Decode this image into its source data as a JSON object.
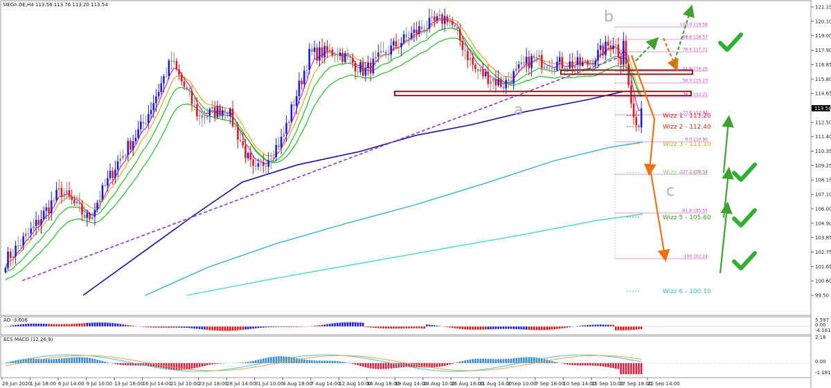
{
  "header": {
    "symbol_line": "SIEGn.DE,H4  113.56 113.76 113.20 113.54"
  },
  "current_price": "113.54",
  "colors": {
    "bull": "#1a1adf",
    "bear": "#e01818",
    "neutral": "#8a8a8a",
    "ema_fast": "#e020d0",
    "ema_mid": "#20c020",
    "ema_orange": "#f0a020",
    "ema_slow": "#1010a0",
    "ema_cyan": "#30b0e0",
    "ema_teal": "#40d8c8",
    "trend": "#9a30d0",
    "arrow_orange": "#f07010",
    "arrow_green": "#40a030",
    "zone": "#8b1a1a",
    "fib": "#e070e0"
  },
  "chart_data": {
    "type": "candlestick",
    "instrument": "SIEGn.DE",
    "timeframe": "H4",
    "y_ticks": [
      "121.15",
      "120.10",
      "119.00",
      "117.90",
      "116.85",
      "115.80",
      "114.65",
      "113.54",
      "112.50",
      "111.40",
      "110.35",
      "109.25",
      "108.15",
      "107.10",
      "106.00",
      "104.90",
      "103.85",
      "102.75",
      "101.65",
      "100.60",
      "99.50"
    ],
    "ylim": [
      99.5,
      121.15
    ],
    "x_ticks": [
      "29 Jun 2020",
      "1 Jul 18:00",
      "6 Jul 14:00",
      "9 Jul 10:00",
      "13 Jul 18:00",
      "16 Jul 14:00",
      "21 Jul 10:00",
      "23 Jul 18:00",
      "28 Jul 14:00",
      "31 Jul 10:00",
      "4 Aug 18:00",
      "7 Aug 14:00",
      "12 Aug 10:00",
      "14 Aug 18:00",
      "19 Aug 14:00",
      "24 Aug 10:00",
      "26 Aug 18:00",
      "31 Aug 14:00",
      "3 Sep 10:00",
      "7 Sep 18:00",
      "10 Sep 14:00",
      "15 Sep 10:00",
      "17 Sep 18:00",
      "22 Sep 14:00"
    ],
    "candles_close_by_tick": [
      102.1,
      104.5,
      107.4,
      105.2,
      109.3,
      112.4,
      117.1,
      112.9,
      113.6,
      108.6,
      111.2,
      117.6,
      117.8,
      116.3,
      118.1,
      119.5,
      120.4,
      116.4,
      115.3,
      117.2,
      116.9,
      116.8,
      118.6,
      113.54
    ],
    "fib_levels": [
      {
        "label": "100.0  119.56"
      },
      {
        "label": "88.6  118.57"
      },
      {
        "label": "78.6  117.71"
      },
      {
        "label": "61.8  116.25"
      },
      {
        "label": "50.0  115.23"
      },
      {
        "label": "38.2  114.21"
      },
      {
        "label": "23.6  112.94"
      },
      {
        "label": "0.0  110.90"
      },
      {
        "label": "-27.2  108.54"
      },
      {
        "label": "-61.8  105.55"
      },
      {
        "label": "-100  102.24"
      }
    ],
    "wizz_levels": [
      {
        "label": "Wizz 1 - 113.20",
        "color": "#e02020"
      },
      {
        "label": "Wizz 2 - 112.40",
        "color": "#d03010"
      },
      {
        "label": "Wizz 3 - 111.10",
        "color": "#e0a020"
      },
      {
        "label": "Wizz 4 - 109.2",
        "color": "#90d080"
      },
      {
        "label": "Wizz 5 - 105.60",
        "color": "#30a020"
      },
      {
        "label": "Wizz 6 - 100.10",
        "color": "#30c0c0"
      }
    ],
    "wave_labels": [
      "a",
      "b",
      "c"
    ],
    "ao": {
      "title": "AO -3.606",
      "ticks": [
        "5.597",
        "0.00",
        "-4.161"
      ]
    },
    "macd": {
      "title": "ECS MACD (12,26,9)",
      "ticks": [
        "2.18",
        "0.00",
        "-1.1812"
      ]
    }
  }
}
